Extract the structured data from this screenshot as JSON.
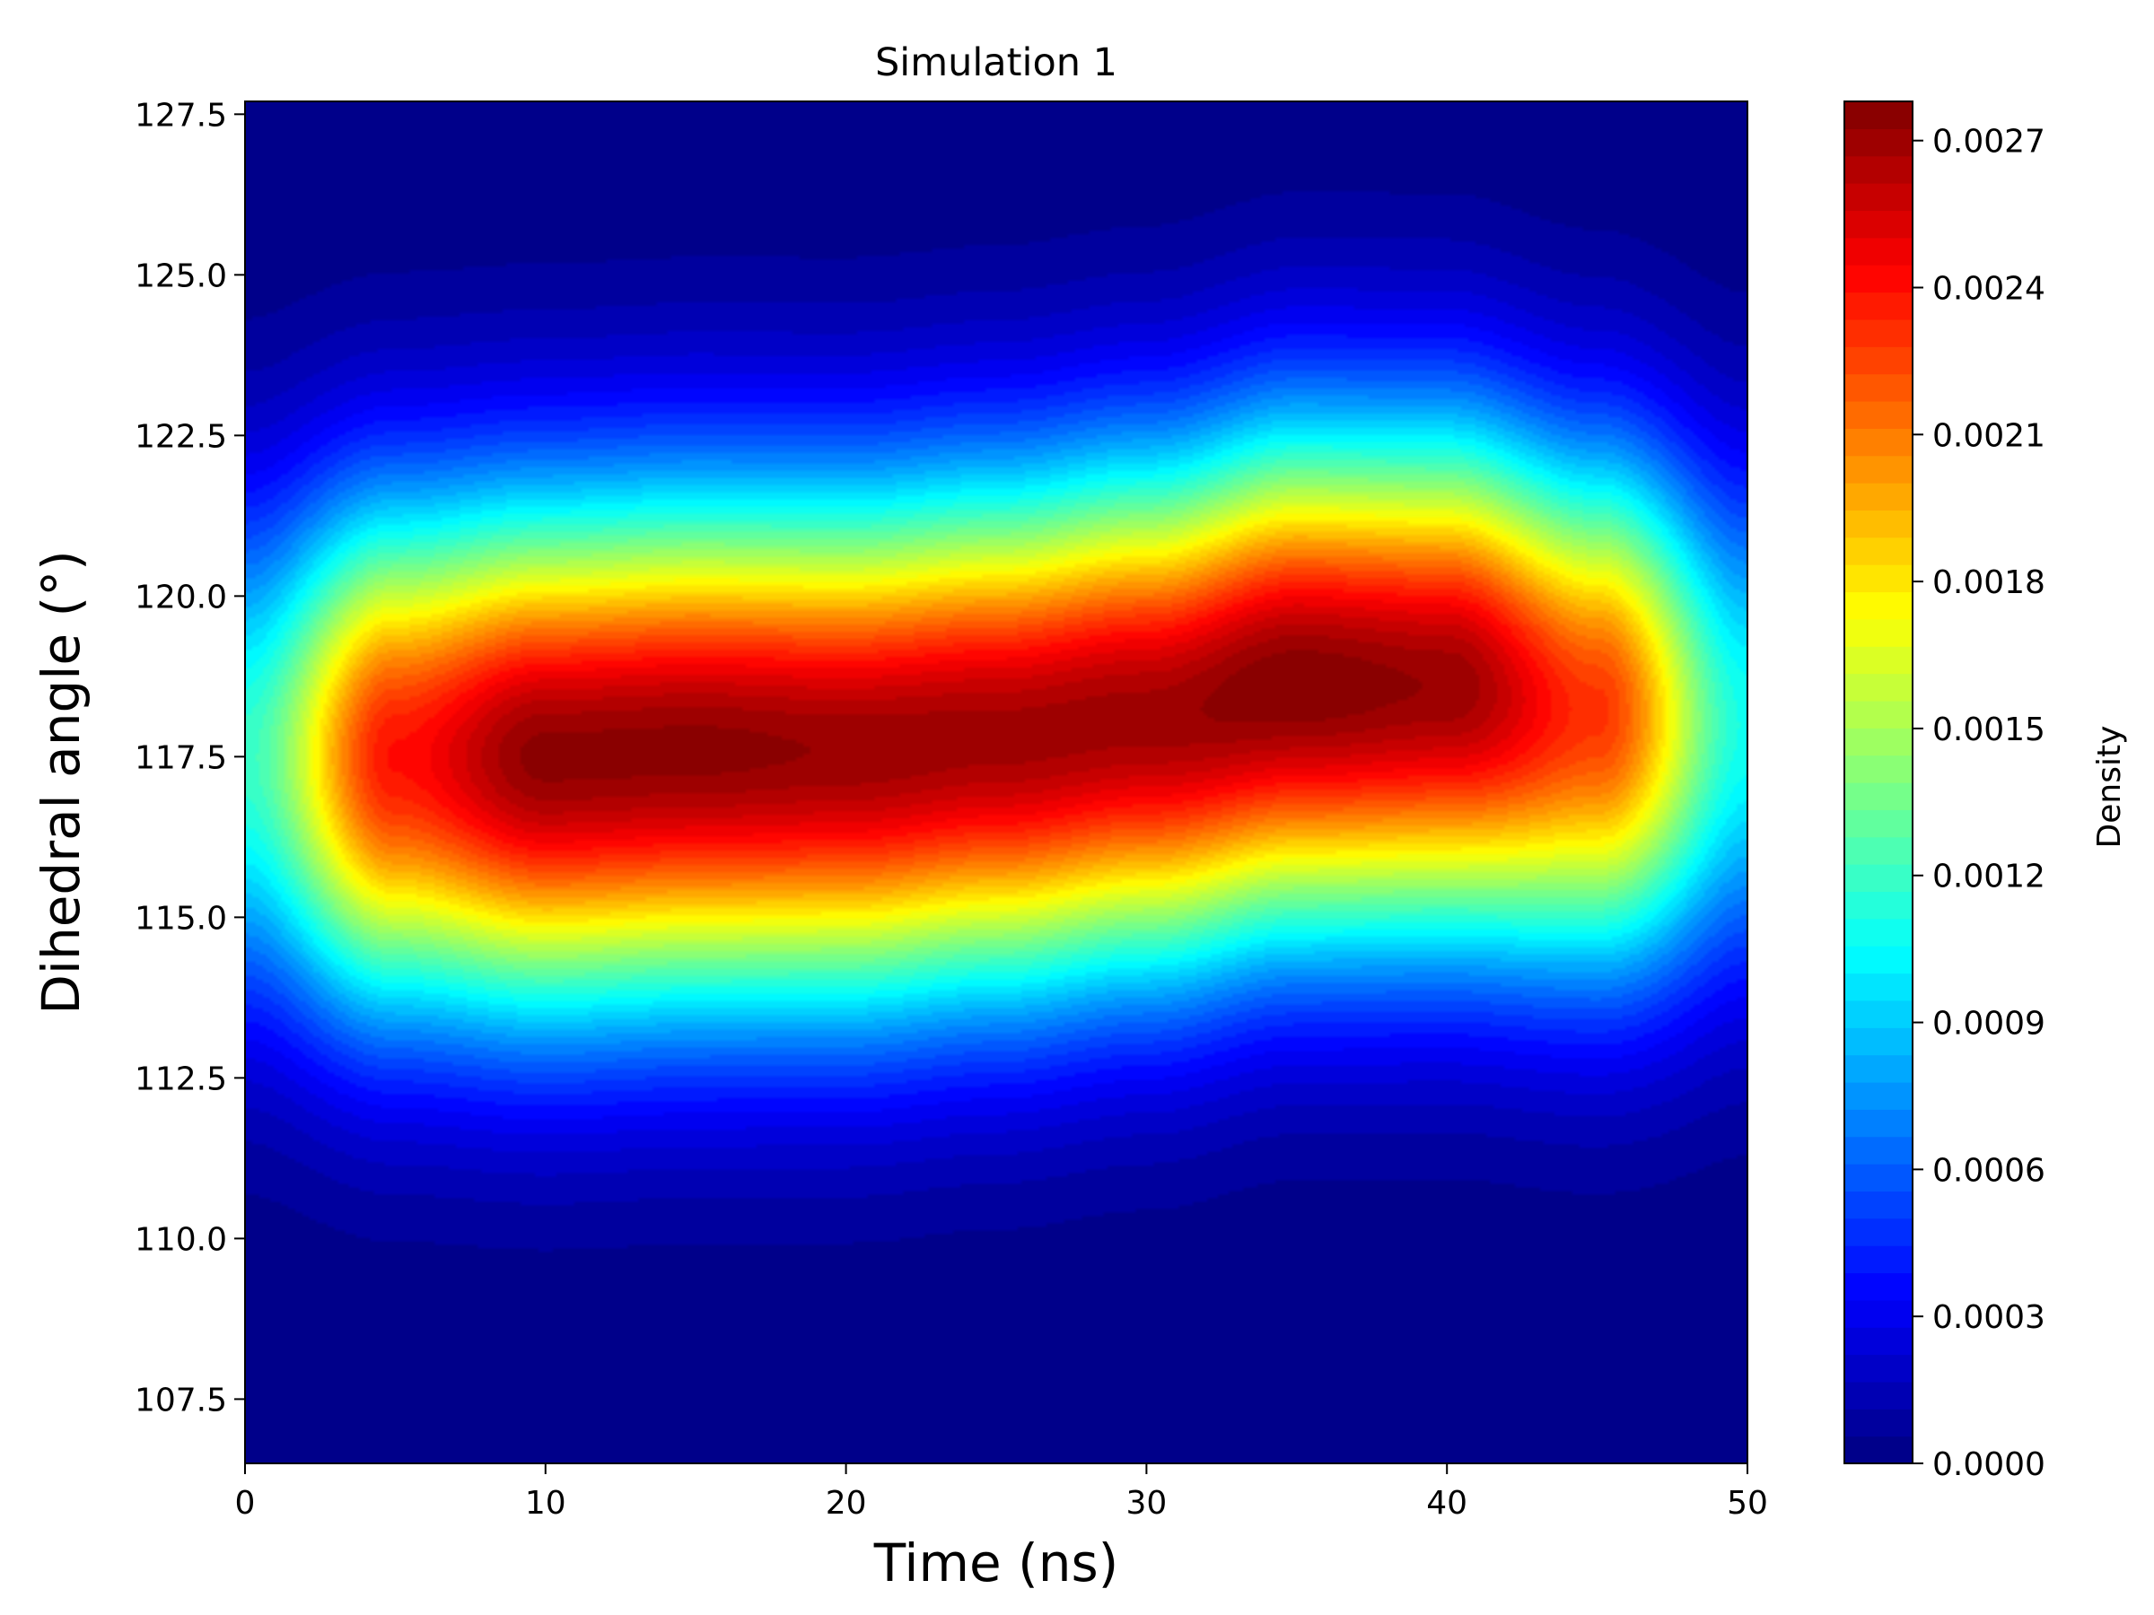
{
  "chart_data": {
    "type": "heatmap",
    "title": "Simulation 1",
    "xlabel": "Time (ns)",
    "ylabel": "Dihedral angle (°)",
    "xlim": [
      0,
      50
    ],
    "ylim": [
      106.5,
      127.7
    ],
    "x_ticks": [
      0,
      10,
      20,
      30,
      40,
      50
    ],
    "x_tick_labels": [
      "0",
      "10",
      "20",
      "30",
      "40",
      "50"
    ],
    "y_ticks": [
      107.5,
      110.0,
      112.5,
      115.0,
      117.5,
      120.0,
      122.5,
      125.0,
      127.5
    ],
    "y_tick_labels": [
      "107.5",
      "110.0",
      "112.5",
      "115.0",
      "117.5",
      "120.0",
      "122.5",
      "125.0",
      "127.5"
    ],
    "colormap": "jet",
    "grid": false,
    "colorbar": {
      "label": "Density",
      "range": [
        0.0,
        0.00278
      ],
      "ticks": [
        0.0,
        0.0003,
        0.0006,
        0.0009,
        0.0012,
        0.0015,
        0.0018,
        0.0021,
        0.0024,
        0.0027
      ],
      "tick_labels": [
        "0.0000",
        "0.0003",
        "0.0006",
        "0.0009",
        "0.0012",
        "0.0015",
        "0.0018",
        "0.0021",
        "0.0024",
        "0.0027"
      ],
      "levels": 50
    },
    "density_ridge": {
      "x": [
        0,
        5,
        10,
        15,
        20,
        25,
        30,
        35,
        40,
        45,
        50
      ],
      "peak_angle": [
        117.5,
        117.5,
        117.5,
        117.6,
        117.6,
        117.8,
        118.1,
        118.6,
        118.6,
        118.2,
        118.0
      ],
      "peak_density": [
        0.0012,
        0.0024,
        0.00275,
        0.00275,
        0.00272,
        0.0027,
        0.0027,
        0.00278,
        0.00272,
        0.0023,
        0.0011
      ]
    }
  }
}
